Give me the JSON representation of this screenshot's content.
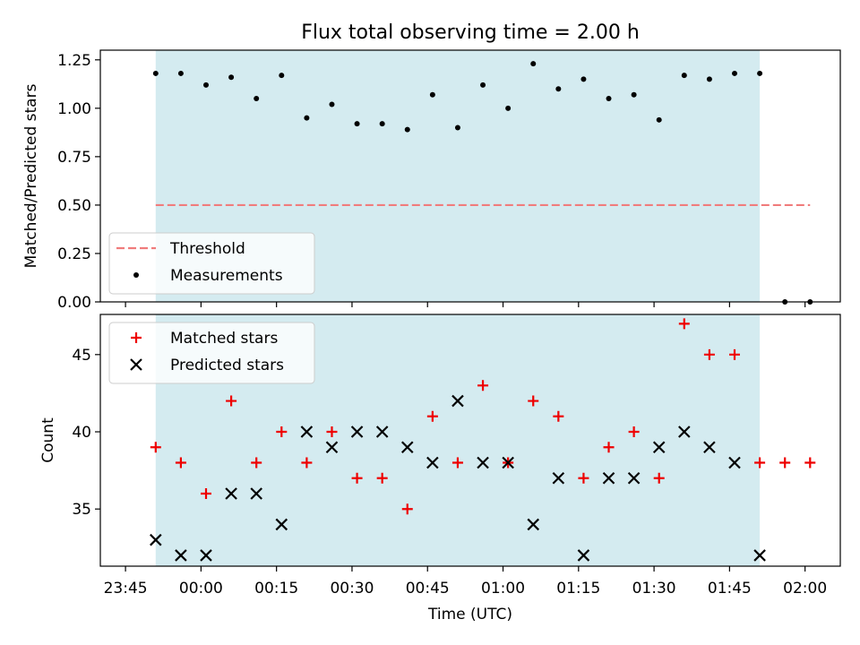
{
  "figure_title": "Flux total observing time = 2.00 h",
  "colors": {
    "shade": "#d4ebf0",
    "threshold": "#f07c7c",
    "measurement": "#000000",
    "matched": "#ee0000",
    "predicted": "#000000"
  },
  "chart_data": [
    {
      "type": "scatter",
      "title": "Flux total observing time = 2.00 h",
      "xlabel": "",
      "ylabel": "Matched/Predicted stars",
      "xlim": [
        "23:40",
        "02:07"
      ],
      "ylim": [
        0,
        1.3
      ],
      "yticks": [
        0.0,
        0.25,
        0.5,
        0.75,
        1.0,
        1.25
      ],
      "ytick_labels": [
        "0.00",
        "0.25",
        "0.50",
        "0.75",
        "1.00",
        "1.25"
      ],
      "shaded_span": [
        "23:51",
        "01:51"
      ],
      "legend": {
        "position": "lower-left",
        "entries": [
          "Threshold",
          "Measurements"
        ]
      },
      "series": [
        {
          "name": "Threshold",
          "style": "dashed-line",
          "x": [
            "23:51",
            "02:01"
          ],
          "y": [
            0.5,
            0.5
          ]
        },
        {
          "name": "Measurements",
          "style": "dot",
          "x": [
            "23:51",
            "23:56",
            "00:01",
            "00:06",
            "00:11",
            "00:16",
            "00:21",
            "00:26",
            "00:31",
            "00:36",
            "00:41",
            "00:46",
            "00:51",
            "00:56",
            "01:01",
            "01:06",
            "01:11",
            "01:16",
            "01:21",
            "01:26",
            "01:31",
            "01:36",
            "01:41",
            "01:46",
            "01:51",
            "01:56",
            "02:01"
          ],
          "y": [
            1.18,
            1.18,
            1.12,
            1.16,
            1.05,
            1.17,
            0.95,
            1.02,
            0.92,
            0.92,
            0.89,
            1.07,
            0.9,
            1.12,
            1.0,
            1.23,
            1.1,
            1.15,
            1.05,
            1.07,
            0.94,
            1.17,
            1.15,
            1.18,
            1.18,
            0.0,
            0.0
          ]
        }
      ]
    },
    {
      "type": "scatter",
      "title": "",
      "xlabel": "Time (UTC)",
      "ylabel": "Count",
      "xlim": [
        "23:40",
        "02:07"
      ],
      "ylim": [
        31.3,
        47.6
      ],
      "yticks": [
        35,
        40,
        45
      ],
      "ytick_labels": [
        "35",
        "40",
        "45"
      ],
      "xticks": [
        "23:45",
        "00:00",
        "00:15",
        "00:30",
        "00:45",
        "01:00",
        "01:15",
        "01:30",
        "01:45",
        "02:00"
      ],
      "xtick_labels": [
        "23:45",
        "00:00",
        "00:15",
        "00:30",
        "00:45",
        "01:00",
        "01:15",
        "01:30",
        "01:45",
        "02:00"
      ],
      "shaded_span": [
        "23:51",
        "01:51"
      ],
      "legend": {
        "position": "upper-left",
        "entries": [
          "Matched stars",
          "Predicted stars"
        ]
      },
      "series": [
        {
          "name": "Matched stars",
          "style": "plus",
          "x": [
            "23:51",
            "23:56",
            "00:01",
            "00:06",
            "00:11",
            "00:16",
            "00:21",
            "00:26",
            "00:31",
            "00:36",
            "00:41",
            "00:46",
            "00:51",
            "00:56",
            "01:01",
            "01:06",
            "01:11",
            "01:16",
            "01:21",
            "01:26",
            "01:31",
            "01:36",
            "01:41",
            "01:46",
            "01:51",
            "01:56",
            "02:01"
          ],
          "y": [
            39,
            38,
            36,
            42,
            38,
            40,
            38,
            40,
            37,
            37,
            35,
            41,
            38,
            43,
            38,
            42,
            41,
            37,
            39,
            40,
            37,
            47,
            45,
            45,
            38,
            38,
            38
          ]
        },
        {
          "name": "Predicted stars",
          "style": "x",
          "x": [
            "23:51",
            "23:56",
            "00:01",
            "00:06",
            "00:11",
            "00:16",
            "00:21",
            "00:26",
            "00:31",
            "00:36",
            "00:41",
            "00:46",
            "00:51",
            "00:56",
            "01:01",
            "01:06",
            "01:11",
            "01:16",
            "01:21",
            "01:26",
            "01:31",
            "01:36",
            "01:41",
            "01:46",
            "01:51"
          ],
          "y": [
            33,
            32,
            32,
            36,
            36,
            34,
            40,
            39,
            40,
            40,
            39,
            38,
            42,
            38,
            38,
            34,
            37,
            32,
            37,
            37,
            39,
            40,
            39,
            38,
            32
          ]
        }
      ]
    }
  ]
}
